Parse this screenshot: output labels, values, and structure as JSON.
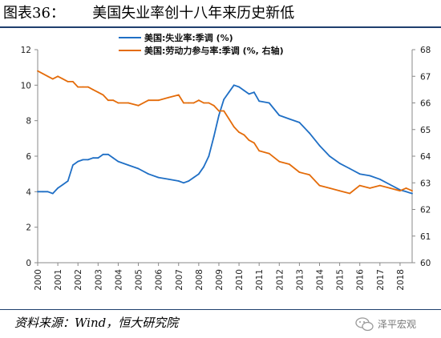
{
  "figure": {
    "title": "图表36：      美国失业率创十八年来历史新低",
    "source": "资料来源：Wind，恒大研究院",
    "watermark": "泽平宏观"
  },
  "chart_data": {
    "type": "line",
    "title": "",
    "xlabel": "",
    "ylabel": "",
    "x_ticks": [
      "2000",
      "2001",
      "2002",
      "2003",
      "2004",
      "2005",
      "2006",
      "2007",
      "2008",
      "2009",
      "2010",
      "2011",
      "2012",
      "2013",
      "2014",
      "2015",
      "2016",
      "2017",
      "2018"
    ],
    "xlim": [
      2000.0,
      2018.6
    ],
    "ylim_left": [
      0,
      12
    ],
    "y_ticks_left": [
      "0",
      "2",
      "4",
      "6",
      "8",
      "10",
      "12"
    ],
    "ylim_right": [
      60,
      68
    ],
    "y_ticks_right": [
      "60",
      "61",
      "62",
      "63",
      "64",
      "65",
      "66",
      "67",
      "68"
    ],
    "grid": false,
    "legend_position": "top-center",
    "series": [
      {
        "name": "美国:失业率:季调 (%)",
        "axis": "left",
        "color": "#1f6fc5",
        "x": [
          2000.0,
          2000.25,
          2000.5,
          2000.75,
          2001.0,
          2001.25,
          2001.5,
          2001.75,
          2002.0,
          2002.25,
          2002.5,
          2002.75,
          2003.0,
          2003.25,
          2003.5,
          2003.75,
          2004.0,
          2004.5,
          2005.0,
          2005.5,
          2006.0,
          2006.5,
          2007.0,
          2007.25,
          2007.5,
          2007.75,
          2008.0,
          2008.25,
          2008.5,
          2008.75,
          2009.0,
          2009.25,
          2009.5,
          2009.75,
          2010.0,
          2010.25,
          2010.5,
          2010.75,
          2011.0,
          2011.5,
          2012.0,
          2012.5,
          2013.0,
          2013.5,
          2014.0,
          2014.5,
          2015.0,
          2015.5,
          2016.0,
          2016.5,
          2017.0,
          2017.5,
          2018.0,
          2018.3,
          2018.6
        ],
        "values": [
          4.0,
          4.0,
          4.0,
          3.9,
          4.2,
          4.4,
          4.6,
          5.5,
          5.7,
          5.8,
          5.8,
          5.9,
          5.9,
          6.1,
          6.1,
          5.9,
          5.7,
          5.5,
          5.3,
          5.0,
          4.8,
          4.7,
          4.6,
          4.5,
          4.6,
          4.8,
          5.0,
          5.4,
          6.0,
          7.1,
          8.3,
          9.2,
          9.6,
          10.0,
          9.9,
          9.7,
          9.5,
          9.6,
          9.1,
          9.0,
          8.3,
          8.1,
          7.9,
          7.3,
          6.6,
          6.0,
          5.6,
          5.3,
          5.0,
          4.9,
          4.7,
          4.4,
          4.1,
          4.0,
          3.9
        ]
      },
      {
        "name": "美国:劳动力参与率:季调 (%, 右轴)",
        "axis": "right",
        "color": "#e46c0a",
        "x": [
          2000.0,
          2000.25,
          2000.5,
          2000.75,
          2001.0,
          2001.25,
          2001.5,
          2001.75,
          2002.0,
          2002.25,
          2002.5,
          2002.75,
          2003.0,
          2003.25,
          2003.5,
          2003.75,
          2004.0,
          2004.5,
          2005.0,
          2005.5,
          2006.0,
          2006.5,
          2007.0,
          2007.25,
          2007.5,
          2007.75,
          2008.0,
          2008.25,
          2008.5,
          2008.75,
          2009.0,
          2009.25,
          2009.5,
          2009.75,
          2010.0,
          2010.25,
          2010.5,
          2010.75,
          2011.0,
          2011.5,
          2012.0,
          2012.5,
          2013.0,
          2013.5,
          2014.0,
          2014.5,
          2015.0,
          2015.5,
          2016.0,
          2016.5,
          2017.0,
          2017.5,
          2018.0,
          2018.3,
          2018.6
        ],
        "values": [
          67.2,
          67.1,
          67.0,
          66.9,
          67.0,
          66.9,
          66.8,
          66.8,
          66.6,
          66.6,
          66.6,
          66.5,
          66.4,
          66.3,
          66.1,
          66.1,
          66.0,
          66.0,
          65.9,
          66.1,
          66.1,
          66.2,
          66.3,
          66.0,
          66.0,
          66.0,
          66.1,
          66.0,
          66.0,
          65.9,
          65.7,
          65.7,
          65.4,
          65.1,
          64.9,
          64.8,
          64.6,
          64.5,
          64.2,
          64.1,
          63.8,
          63.7,
          63.4,
          63.3,
          62.9,
          62.8,
          62.7,
          62.6,
          62.9,
          62.8,
          62.9,
          62.8,
          62.7,
          62.8,
          62.7
        ]
      }
    ]
  }
}
